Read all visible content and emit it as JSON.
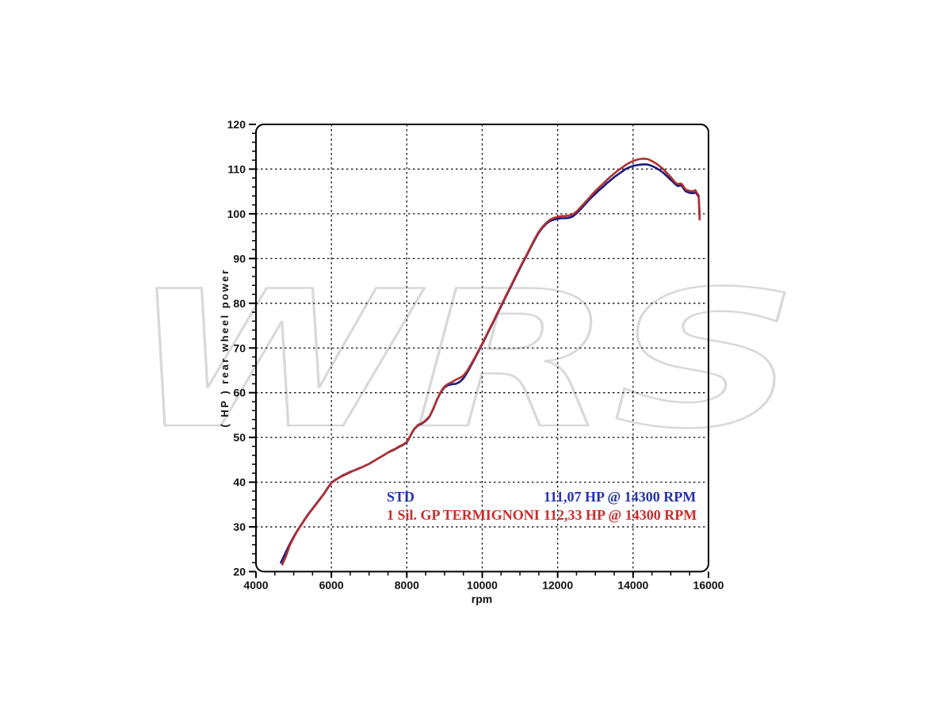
{
  "watermark": {
    "text": "WRS",
    "color": "#d9d9d9"
  },
  "chart_data": {
    "type": "line",
    "title": "",
    "xlabel": "rpm",
    "ylabel": "( HP )  rear wheel power",
    "xlim": [
      4000,
      16000
    ],
    "ylim": [
      20,
      120
    ],
    "x_major_tick_step": 2000,
    "x_minor_tick_step": 500,
    "y_major_tick_step": 10,
    "y_minor_tick_step": 2,
    "grid": {
      "style": "dashed",
      "x_lines": [
        6000,
        8000,
        10000,
        12000,
        14000
      ],
      "y_lines": [
        30,
        40,
        50,
        60,
        70,
        80,
        90,
        100,
        110
      ]
    },
    "legend_position": "inside-bottom",
    "legend": [
      {
        "label": "STD",
        "value": "111,07 HP @ 14300 RPM",
        "color": "#2433aa"
      },
      {
        "label": "1 Sil. GP TERMIGNONI",
        "value": "112,33 HP @ 14300 RPM",
        "color": "#cc2b2b"
      }
    ],
    "series": [
      {
        "name": "STD",
        "color": "#1b1b7e",
        "points": [
          [
            4660,
            22.0
          ],
          [
            4700,
            22.7
          ],
          [
            4800,
            24.5
          ],
          [
            4900,
            26.2
          ],
          [
            5000,
            27.8
          ],
          [
            5100,
            29.2
          ],
          [
            5200,
            30.5
          ],
          [
            5300,
            31.8
          ],
          [
            5400,
            33.0
          ],
          [
            5500,
            34.1
          ],
          [
            5600,
            35.2
          ],
          [
            5700,
            36.3
          ],
          [
            5800,
            37.4
          ],
          [
            5900,
            38.7
          ],
          [
            6000,
            39.9
          ],
          [
            6100,
            40.5
          ],
          [
            6200,
            41.0
          ],
          [
            6300,
            41.5
          ],
          [
            6400,
            41.9
          ],
          [
            6500,
            42.3
          ],
          [
            6600,
            42.6
          ],
          [
            6700,
            43.0
          ],
          [
            6800,
            43.3
          ],
          [
            6900,
            43.7
          ],
          [
            7000,
            44.1
          ],
          [
            7100,
            44.6
          ],
          [
            7200,
            45.1
          ],
          [
            7300,
            45.6
          ],
          [
            7400,
            46.1
          ],
          [
            7500,
            46.6
          ],
          [
            7600,
            47.0
          ],
          [
            7700,
            47.4
          ],
          [
            7800,
            47.9
          ],
          [
            7900,
            48.3
          ],
          [
            8000,
            48.9
          ],
          [
            8050,
            49.6
          ],
          [
            8100,
            50.4
          ],
          [
            8150,
            51.2
          ],
          [
            8200,
            51.9
          ],
          [
            8300,
            52.7
          ],
          [
            8400,
            53.1
          ],
          [
            8500,
            53.7
          ],
          [
            8600,
            54.6
          ],
          [
            8700,
            56.3
          ],
          [
            8800,
            58.4
          ],
          [
            8900,
            60.1
          ],
          [
            9000,
            61.2
          ],
          [
            9100,
            61.7
          ],
          [
            9200,
            61.9
          ],
          [
            9300,
            62.0
          ],
          [
            9400,
            62.4
          ],
          [
            9500,
            63.2
          ],
          [
            9600,
            64.5
          ],
          [
            9700,
            66.0
          ],
          [
            9800,
            67.6
          ],
          [
            9900,
            69.2
          ],
          [
            10000,
            70.8
          ],
          [
            10100,
            72.5
          ],
          [
            10200,
            74.2
          ],
          [
            10300,
            75.9
          ],
          [
            10400,
            77.6
          ],
          [
            10500,
            79.3
          ],
          [
            10600,
            81.0
          ],
          [
            10700,
            82.7
          ],
          [
            10800,
            84.4
          ],
          [
            10900,
            86.1
          ],
          [
            11000,
            87.8
          ],
          [
            11100,
            89.4
          ],
          [
            11200,
            91.0
          ],
          [
            11300,
            92.7
          ],
          [
            11400,
            94.3
          ],
          [
            11500,
            95.8
          ],
          [
            11600,
            96.9
          ],
          [
            11700,
            97.8
          ],
          [
            11800,
            98.4
          ],
          [
            11900,
            98.7
          ],
          [
            12000,
            98.9
          ],
          [
            12100,
            99.0
          ],
          [
            12200,
            99.0
          ],
          [
            12300,
            99.1
          ],
          [
            12400,
            99.4
          ],
          [
            12500,
            100.1
          ],
          [
            12600,
            101.0
          ],
          [
            12700,
            101.9
          ],
          [
            12800,
            102.8
          ],
          [
            12900,
            103.7
          ],
          [
            13000,
            104.5
          ],
          [
            13100,
            105.3
          ],
          [
            13200,
            106.0
          ],
          [
            13300,
            106.8
          ],
          [
            13400,
            107.5
          ],
          [
            13500,
            108.2
          ],
          [
            13600,
            108.8
          ],
          [
            13700,
            109.4
          ],
          [
            13800,
            110.0
          ],
          [
            13900,
            110.4
          ],
          [
            14000,
            110.7
          ],
          [
            14100,
            110.9
          ],
          [
            14200,
            111.0
          ],
          [
            14300,
            111.07
          ],
          [
            14400,
            111.0
          ],
          [
            14500,
            110.7
          ],
          [
            14600,
            110.3
          ],
          [
            14700,
            109.8
          ],
          [
            14800,
            109.2
          ],
          [
            14900,
            108.4
          ],
          [
            15000,
            107.6
          ],
          [
            15100,
            106.8
          ],
          [
            15150,
            106.4
          ],
          [
            15200,
            106.2
          ],
          [
            15250,
            106.4
          ],
          [
            15300,
            106.2
          ],
          [
            15350,
            105.5
          ],
          [
            15400,
            105.0
          ],
          [
            15500,
            104.7
          ],
          [
            15600,
            104.6
          ],
          [
            15650,
            104.9
          ],
          [
            15700,
            104.3
          ],
          [
            15740,
            103.8
          ],
          [
            15755,
            101.5
          ],
          [
            15765,
            99.4
          ]
        ]
      },
      {
        "name": "1 Sil. GP TERMIGNONI",
        "color": "#b13030",
        "points": [
          [
            4700,
            21.6
          ],
          [
            4780,
            23.1
          ],
          [
            4900,
            25.9
          ],
          [
            5000,
            27.6
          ],
          [
            5100,
            29.1
          ],
          [
            5200,
            30.4
          ],
          [
            5300,
            31.7
          ],
          [
            5400,
            32.9
          ],
          [
            5500,
            34.0
          ],
          [
            5600,
            35.1
          ],
          [
            5700,
            36.2
          ],
          [
            5800,
            37.3
          ],
          [
            5900,
            38.6
          ],
          [
            6000,
            39.8
          ],
          [
            6100,
            40.4
          ],
          [
            6200,
            41.0
          ],
          [
            6300,
            41.4
          ],
          [
            6400,
            41.8
          ],
          [
            6500,
            42.2
          ],
          [
            6600,
            42.6
          ],
          [
            6700,
            42.9
          ],
          [
            6800,
            43.3
          ],
          [
            6900,
            43.7
          ],
          [
            7000,
            44.1
          ],
          [
            7100,
            44.6
          ],
          [
            7200,
            45.1
          ],
          [
            7300,
            45.6
          ],
          [
            7400,
            46.1
          ],
          [
            7500,
            46.6
          ],
          [
            7600,
            47.1
          ],
          [
            7700,
            47.5
          ],
          [
            7800,
            48.0
          ],
          [
            7900,
            48.4
          ],
          [
            8000,
            49.0
          ],
          [
            8050,
            49.7
          ],
          [
            8100,
            50.5
          ],
          [
            8150,
            51.3
          ],
          [
            8200,
            52.0
          ],
          [
            8300,
            52.8
          ],
          [
            8400,
            53.2
          ],
          [
            8500,
            53.8
          ],
          [
            8600,
            54.7
          ],
          [
            8700,
            56.4
          ],
          [
            8800,
            58.5
          ],
          [
            8900,
            60.2
          ],
          [
            9000,
            61.4
          ],
          [
            9100,
            62.0
          ],
          [
            9200,
            62.4
          ],
          [
            9300,
            62.9
          ],
          [
            9400,
            63.3
          ],
          [
            9500,
            63.8
          ],
          [
            9600,
            64.9
          ],
          [
            9700,
            66.3
          ],
          [
            9800,
            67.8
          ],
          [
            9900,
            69.4
          ],
          [
            10000,
            71.0
          ],
          [
            10100,
            72.7
          ],
          [
            10200,
            74.4
          ],
          [
            10300,
            76.1
          ],
          [
            10400,
            77.8
          ],
          [
            10500,
            79.5
          ],
          [
            10600,
            81.2
          ],
          [
            10700,
            82.9
          ],
          [
            10800,
            84.6
          ],
          [
            10900,
            86.3
          ],
          [
            11000,
            88.0
          ],
          [
            11100,
            89.6
          ],
          [
            11200,
            91.2
          ],
          [
            11300,
            92.9
          ],
          [
            11400,
            94.5
          ],
          [
            11500,
            96.0
          ],
          [
            11600,
            97.1
          ],
          [
            11700,
            98.0
          ],
          [
            11800,
            98.7
          ],
          [
            11900,
            99.1
          ],
          [
            12000,
            99.3
          ],
          [
            12100,
            99.5
          ],
          [
            12200,
            99.5
          ],
          [
            12300,
            99.6
          ],
          [
            12400,
            99.9
          ],
          [
            12500,
            100.5
          ],
          [
            12600,
            101.4
          ],
          [
            12700,
            102.3
          ],
          [
            12800,
            103.2
          ],
          [
            12900,
            104.2
          ],
          [
            13000,
            105.1
          ],
          [
            13100,
            105.9
          ],
          [
            13200,
            106.7
          ],
          [
            13300,
            107.5
          ],
          [
            13400,
            108.3
          ],
          [
            13500,
            109.0
          ],
          [
            13600,
            109.7
          ],
          [
            13700,
            110.3
          ],
          [
            13800,
            110.9
          ],
          [
            13900,
            111.4
          ],
          [
            14000,
            111.8
          ],
          [
            14100,
            112.1
          ],
          [
            14200,
            112.3
          ],
          [
            14300,
            112.33
          ],
          [
            14400,
            112.2
          ],
          [
            14500,
            111.8
          ],
          [
            14600,
            111.3
          ],
          [
            14700,
            110.7
          ],
          [
            14800,
            110.0
          ],
          [
            14900,
            109.1
          ],
          [
            15000,
            108.2
          ],
          [
            15100,
            107.2
          ],
          [
            15150,
            106.8
          ],
          [
            15200,
            106.6
          ],
          [
            15250,
            106.8
          ],
          [
            15300,
            106.6
          ],
          [
            15350,
            105.9
          ],
          [
            15400,
            105.4
          ],
          [
            15500,
            105.1
          ],
          [
            15600,
            105.0
          ],
          [
            15650,
            105.3
          ],
          [
            15700,
            104.6
          ],
          [
            15740,
            104.1
          ],
          [
            15755,
            101.5
          ],
          [
            15765,
            98.7
          ]
        ]
      }
    ]
  }
}
